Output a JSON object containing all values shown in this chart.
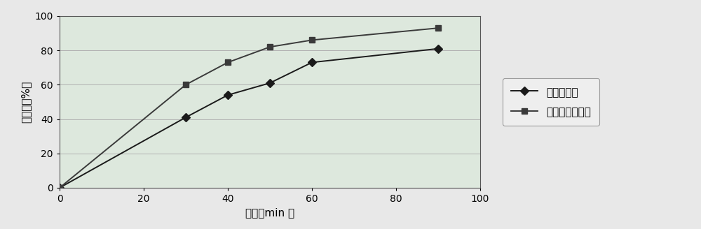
{
  "series1_x": [
    0,
    30,
    40,
    50,
    60,
    90
  ],
  "series1_y": [
    0,
    41,
    54,
    61,
    73,
    81
  ],
  "series2_x": [
    0,
    30,
    40,
    50,
    60,
    90
  ],
  "series2_y": [
    0,
    60,
    73,
    82,
    86,
    93
  ],
  "series1_label": "尼尔雌醇片",
  "series2_label": "尼尔雌醇冻干片",
  "xlabel": "时间（min ）",
  "ylabel": "溶出度（%）",
  "xlim": [
    0,
    100
  ],
  "ylim": [
    0,
    100
  ],
  "xticks": [
    0,
    20,
    40,
    60,
    80,
    100
  ],
  "yticks": [
    0,
    20,
    40,
    60,
    80,
    100
  ],
  "plot_bg_color": "#dde8dd",
  "fig_bg_color": "#e8e8e8",
  "line1_color": "#1a1a1a",
  "line2_color": "#3a3a3a",
  "marker1": "D",
  "marker2": "s",
  "legend_bg": "#f0f0f0",
  "grid_color": "#b0b0b0",
  "grid_linewidth": 0.7,
  "line_linewidth": 1.4,
  "markersize": 6,
  "tick_fontsize": 10,
  "label_fontsize": 11,
  "legend_fontsize": 11
}
